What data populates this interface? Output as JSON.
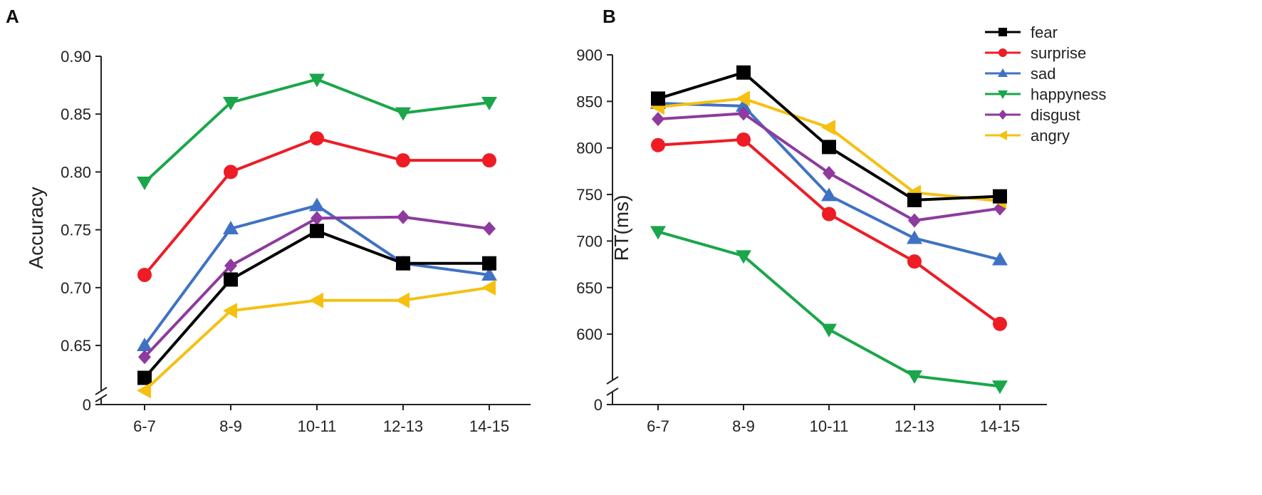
{
  "chart_data": [
    {
      "type": "line",
      "panel_label": "A",
      "title": "",
      "xlabel": "",
      "ylabel": "Accuracy",
      "categories": [
        "6-7",
        "8-9",
        "10-11",
        "12-13",
        "14-15"
      ],
      "y_ticks": [
        "0.65",
        "0.70",
        "0.75",
        "0.80",
        "0.85",
        "0.90"
      ],
      "y_tick_values": [
        0.65,
        0.7,
        0.75,
        0.8,
        0.85,
        0.9
      ],
      "axis_break_label": "0",
      "ylim": [
        0.61,
        0.9
      ],
      "series": [
        {
          "name": "happyness",
          "color": "#1aa64a",
          "marker": "triangle-down",
          "values": [
            0.791,
            0.86,
            0.88,
            0.851,
            0.86
          ]
        },
        {
          "name": "surprise",
          "color": "#ee1c25",
          "marker": "circle",
          "values": [
            0.711,
            0.8,
            0.829,
            0.81,
            0.81
          ]
        },
        {
          "name": "sad",
          "color": "#3f72c4",
          "marker": "triangle-up",
          "values": [
            0.65,
            0.751,
            0.771,
            0.721,
            0.711
          ]
        },
        {
          "name": "disgust",
          "color": "#8e3a9e",
          "marker": "diamond",
          "values": [
            0.64,
            0.719,
            0.76,
            0.761,
            0.751
          ]
        },
        {
          "name": "fear",
          "color": "#000000",
          "marker": "square",
          "values": [
            0.622,
            0.707,
            0.749,
            0.721,
            0.721
          ]
        },
        {
          "name": "angry",
          "color": "#f5c010",
          "marker": "triangle-left",
          "values": [
            0.611,
            0.68,
            0.689,
            0.689,
            0.7
          ]
        }
      ]
    },
    {
      "type": "line",
      "panel_label": "B",
      "title": "",
      "xlabel": "",
      "ylabel": "RT(ms)",
      "categories": [
        "6-7",
        "8-9",
        "10-11",
        "12-13",
        "14-15"
      ],
      "y_ticks": [
        "600",
        "650",
        "700",
        "750",
        "800",
        "850",
        "900"
      ],
      "y_tick_values": [
        600,
        650,
        700,
        750,
        800,
        850,
        900
      ],
      "axis_break_label": "0",
      "ylim": [
        545,
        900
      ],
      "legend": {
        "position": "top-right",
        "entries": [
          "fear",
          "surprise",
          "sad",
          "happyness",
          "disgust",
          "angry"
        ]
      },
      "series": [
        {
          "name": "happyness",
          "color": "#1aa64a",
          "marker": "triangle-down",
          "values": [
            710,
            684,
            605,
            555,
            544
          ]
        },
        {
          "name": "surprise",
          "color": "#ee1c25",
          "marker": "circle",
          "values": [
            803,
            809,
            729,
            678,
            611
          ]
        },
        {
          "name": "sad",
          "color": "#3f72c4",
          "marker": "triangle-up",
          "values": [
            848,
            845,
            749,
            703,
            680
          ]
        },
        {
          "name": "disgust",
          "color": "#8e3a9e",
          "marker": "diamond",
          "values": [
            831,
            837,
            773,
            722,
            735
          ]
        },
        {
          "name": "angry",
          "color": "#f5c010",
          "marker": "triangle-left",
          "values": [
            844,
            853,
            822,
            752,
            743
          ]
        },
        {
          "name": "fear",
          "color": "#000000",
          "marker": "square",
          "values": [
            853,
            881,
            801,
            744,
            748
          ]
        }
      ]
    }
  ]
}
